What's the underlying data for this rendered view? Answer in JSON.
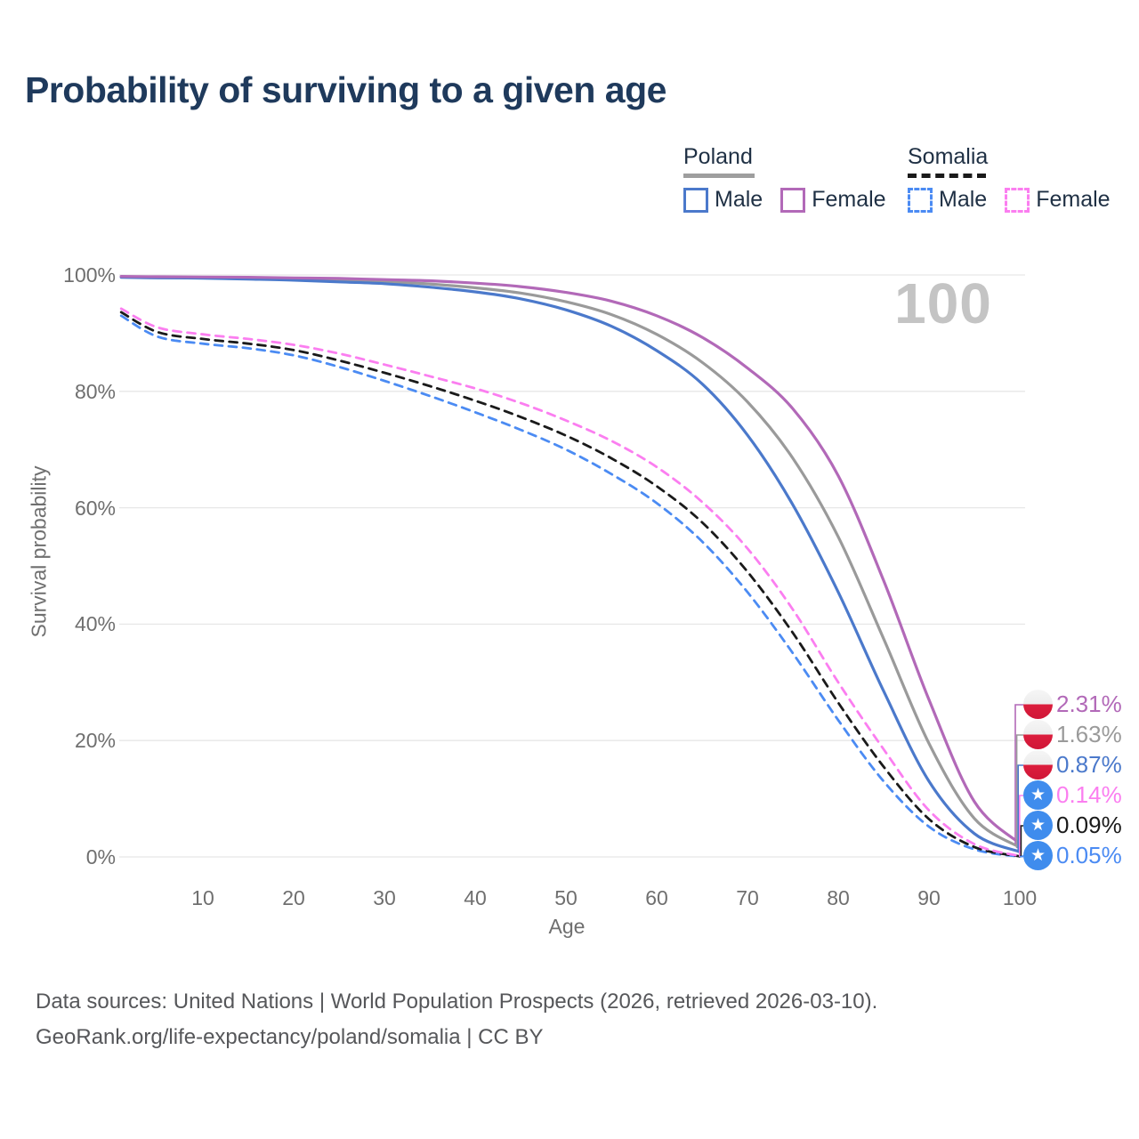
{
  "title": "Probability of surviving to a given age",
  "legend": {
    "groups": [
      {
        "label": "Poland",
        "line_style": "solid",
        "underline_color": "#9e9e9e",
        "items": [
          {
            "label": "Male",
            "color": "#4b79cb"
          },
          {
            "label": "Female",
            "color": "#b269b8"
          }
        ]
      },
      {
        "label": "Somalia",
        "line_style": "dashed",
        "underline_color": "#1a1a1a",
        "items": [
          {
            "label": "Male",
            "color": "#4b8bf3"
          },
          {
            "label": "Female",
            "color": "#fb7ef0"
          }
        ]
      }
    ]
  },
  "chart_data": {
    "type": "line",
    "title": "Probability of surviving to a given age",
    "xlabel": "Age",
    "ylabel": "Survival probability",
    "xlim": [
      0,
      100
    ],
    "ylim": [
      0,
      100
    ],
    "grid": "horizontal-only",
    "grid_color": "#e7e7e7",
    "legend_position": "top-right",
    "end_age_annotation": "100",
    "x_ticks": [
      10,
      20,
      30,
      40,
      50,
      60,
      70,
      80,
      90,
      100
    ],
    "y_ticks": [
      {
        "value": 0,
        "label": "0%"
      },
      {
        "value": 20,
        "label": "20%"
      },
      {
        "value": 40,
        "label": "40%"
      },
      {
        "value": 60,
        "label": "60%"
      },
      {
        "value": 80,
        "label": "80%"
      },
      {
        "value": 100,
        "label": "100%"
      }
    ],
    "x": [
      1,
      5,
      10,
      15,
      20,
      25,
      30,
      35,
      40,
      45,
      50,
      55,
      60,
      65,
      70,
      75,
      80,
      85,
      90,
      95,
      100
    ],
    "series": [
      {
        "id": "poland-female",
        "country": "Poland",
        "sex": "Female",
        "color": "#b269b8",
        "line_style": "solid",
        "end_label": "2.31%",
        "flag": "poland",
        "values": [
          99.75,
          99.7,
          99.65,
          99.6,
          99.5,
          99.4,
          99.2,
          99.0,
          98.6,
          98.0,
          97.0,
          95.5,
          93.0,
          89.3,
          84.0,
          77.0,
          65.5,
          47.5,
          27.0,
          9.5,
          2.31
        ]
      },
      {
        "id": "poland-all",
        "country": "Poland",
        "sex": null,
        "color": "#9a9a9a",
        "line_style": "solid",
        "end_label": "1.63%",
        "flag": "poland",
        "values": [
          99.7,
          99.6,
          99.55,
          99.45,
          99.3,
          99.1,
          98.85,
          98.45,
          97.8,
          96.9,
          95.4,
          93.2,
          89.8,
          85.0,
          78.2,
          68.5,
          55.0,
          37.5,
          19.5,
          6.6,
          1.63
        ]
      },
      {
        "id": "poland-male",
        "country": "Poland",
        "sex": "Male",
        "color": "#4b79cb",
        "line_style": "solid",
        "end_label": "0.87%",
        "flag": "poland",
        "values": [
          99.6,
          99.5,
          99.45,
          99.3,
          99.1,
          98.8,
          98.5,
          97.9,
          97.1,
          95.9,
          94.0,
          91.2,
          87.0,
          81.3,
          72.5,
          60.5,
          45.5,
          28.5,
          13.0,
          4.0,
          0.87
        ]
      },
      {
        "id": "somalia-female",
        "country": "Somalia",
        "sex": "Female",
        "color": "#fb7ef0",
        "line_style": "dashed",
        "end_label": "0.14%",
        "flag": "somalia",
        "values": [
          94.2,
          91.0,
          89.8,
          89.0,
          88.0,
          86.5,
          84.6,
          82.6,
          80.5,
          78.0,
          75.0,
          71.5,
          67.0,
          61.0,
          53.0,
          42.5,
          30.0,
          18.5,
          8.0,
          2.2,
          0.14
        ]
      },
      {
        "id": "somalia-all",
        "country": "Somalia",
        "sex": null,
        "color": "#1a1a1a",
        "line_style": "dashed",
        "end_label": "0.09%",
        "flag": "somalia",
        "values": [
          93.6,
          90.2,
          89.0,
          88.2,
          87.1,
          85.3,
          83.2,
          80.9,
          78.4,
          75.6,
          72.4,
          68.5,
          63.7,
          57.5,
          49.0,
          38.5,
          26.5,
          15.5,
          6.5,
          1.7,
          0.09
        ]
      },
      {
        "id": "somalia-male",
        "country": "Somalia",
        "sex": "Male",
        "color": "#4b8bf3",
        "line_style": "dashed",
        "end_label": "0.05%",
        "flag": "somalia",
        "values": [
          93.0,
          89.4,
          88.2,
          87.4,
          86.2,
          84.2,
          81.8,
          79.2,
          76.4,
          73.4,
          70.0,
          65.8,
          60.8,
          54.2,
          45.5,
          35.0,
          23.5,
          13.0,
          5.2,
          1.3,
          0.05
        ]
      }
    ]
  },
  "flag_icon": {
    "somalia_star": "★",
    "poland_red": "#dc1e3d",
    "somalia_blue": "#3f8ced"
  },
  "footer": {
    "line1": "Data sources: United Nations | World Population Prospects (2026, retrieved 2026-03-10).",
    "line2": "GeoRank.org/life-expectancy/poland/somalia | CC BY"
  }
}
